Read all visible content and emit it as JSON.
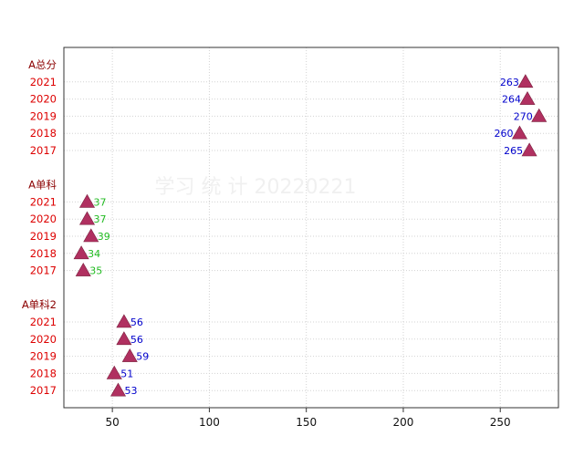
{
  "chart_data": {
    "type": "scatter",
    "title": "",
    "xlabel": "",
    "ylabel": "",
    "xlim": [
      25,
      280
    ],
    "x_ticks": [
      50,
      100,
      150,
      200,
      250
    ],
    "grid": true,
    "watermark": "学习 统 计 20220221",
    "colors": {
      "marker": "#b03060",
      "group_label": "#8b0000",
      "year_label": "#dd0000",
      "value_label_blue": "#0000cc",
      "value_label_green": "#22bb22",
      "grid": "#d3d3d3",
      "watermark": "#f0f0f0"
    },
    "groups": [
      {
        "name": "A总分",
        "value_color": "blue",
        "label_side": "left",
        "points": [
          {
            "year": "2021",
            "value": 263
          },
          {
            "year": "2020",
            "value": 264
          },
          {
            "year": "2019",
            "value": 270
          },
          {
            "year": "2018",
            "value": 260
          },
          {
            "year": "2017",
            "value": 265
          }
        ]
      },
      {
        "name": "A单科",
        "value_color": "green",
        "label_side": "right",
        "points": [
          {
            "year": "2021",
            "value": 37
          },
          {
            "year": "2020",
            "value": 37
          },
          {
            "year": "2019",
            "value": 39
          },
          {
            "year": "2018",
            "value": 34
          },
          {
            "year": "2017",
            "value": 35
          }
        ]
      },
      {
        "name": "A单科2",
        "value_color": "blue",
        "label_side": "right",
        "points": [
          {
            "year": "2021",
            "value": 56
          },
          {
            "year": "2020",
            "value": 56
          },
          {
            "year": "2019",
            "value": 59
          },
          {
            "year": "2018",
            "value": 51
          },
          {
            "year": "2017",
            "value": 53
          }
        ]
      }
    ]
  }
}
